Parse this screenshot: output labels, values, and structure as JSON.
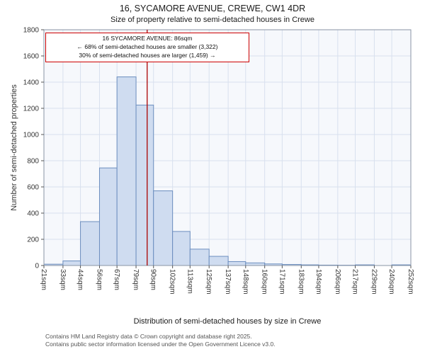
{
  "title": "16, SYCAMORE AVENUE, CREWE, CW1 4DR",
  "subtitle": "Size of property relative to semi-detached houses in Crewe",
  "annotation": {
    "line1": "16 SYCAMORE AVENUE: 86sqm",
    "line2": "← 68% of semi-detached houses are smaller (3,322)",
    "line3": "30% of semi-detached houses are larger (1,459) →"
  },
  "footer": {
    "line1": "Contains HM Land Registry data © Crown copyright and database right 2025.",
    "line2": "Contains public sector information licensed under the Open Government Licence v3.0."
  },
  "chart_data": {
    "type": "bar",
    "title": "16, SYCAMORE AVENUE, CREWE, CW1 4DR",
    "subtitle": "Size of property relative to semi-detached houses in Crewe",
    "xlabel": "Distribution of semi-detached houses by size in Crewe",
    "ylabel": "Number of semi-detached properties",
    "bin_edges": [
      21,
      33,
      44,
      56,
      67,
      79,
      90,
      102,
      113,
      125,
      137,
      148,
      160,
      171,
      183,
      194,
      206,
      217,
      229,
      240,
      252
    ],
    "x_tick_labels": [
      "21sqm",
      "33sqm",
      "44sqm",
      "56sqm",
      "67sqm",
      "79sqm",
      "90sqm",
      "102sqm",
      "113sqm",
      "125sqm",
      "137sqm",
      "148sqm",
      "160sqm",
      "171sqm",
      "183sqm",
      "194sqm",
      "206sqm",
      "217sqm",
      "229sqm",
      "240sqm",
      "252sqm"
    ],
    "values": [
      10,
      35,
      335,
      745,
      1440,
      1225,
      570,
      260,
      125,
      70,
      30,
      20,
      12,
      8,
      5,
      3,
      2,
      5,
      0,
      5
    ],
    "ylim": [
      0,
      1800
    ],
    "y_ticks": [
      0,
      200,
      400,
      600,
      800,
      1000,
      1200,
      1400,
      1600,
      1800
    ],
    "marker_value": 86,
    "grid": true,
    "colors": {
      "bar_fill": "#cfdcf0",
      "bar_stroke": "#6c8ebf",
      "marker_line": "#aa0000",
      "grid_line": "#d8e0ee",
      "plot_bg": "#f6f8fc",
      "frame": "#8a95a5",
      "tick_text": "#333333"
    }
  }
}
